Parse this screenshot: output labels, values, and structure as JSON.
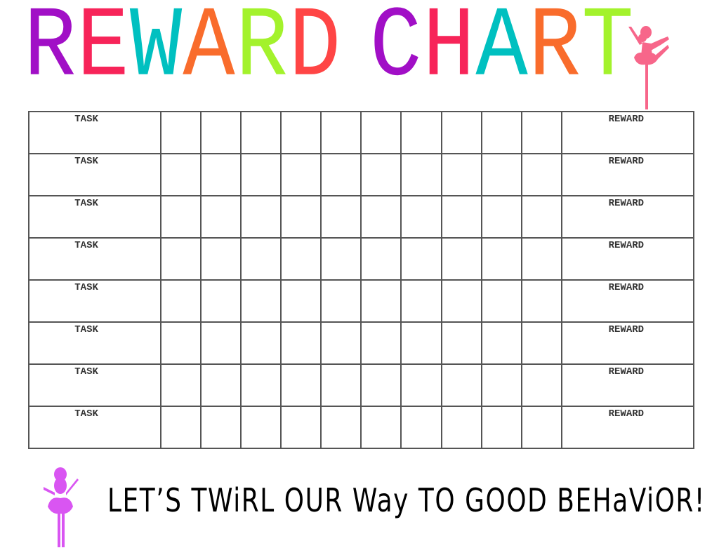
{
  "title": {
    "letters": [
      {
        "char": "R",
        "color": "#a10fc6"
      },
      {
        "char": "E",
        "color": "#f72459"
      },
      {
        "char": "W",
        "color": "#00c0c0"
      },
      {
        "char": "A",
        "color": "#f96c2c"
      },
      {
        "char": "R",
        "color": "#a3f22c"
      },
      {
        "char": "D",
        "color": "#ff4545"
      },
      {
        "char": " ",
        "color": "#000000"
      },
      {
        "char": "C",
        "color": "#a10fc6"
      },
      {
        "char": "H",
        "color": "#f72459"
      },
      {
        "char": "A",
        "color": "#00c0c0"
      },
      {
        "char": "R",
        "color": "#f96c2c"
      },
      {
        "char": "T",
        "color": "#a3f22c"
      }
    ]
  },
  "table": {
    "rows": [
      {
        "task": "TASK",
        "reward": "REWARD"
      },
      {
        "task": "TASK",
        "reward": "REWARD"
      },
      {
        "task": "TASK",
        "reward": "REWARD"
      },
      {
        "task": "TASK",
        "reward": "REWARD"
      },
      {
        "task": "TASK",
        "reward": "REWARD"
      },
      {
        "task": "TASK",
        "reward": "REWARD"
      },
      {
        "task": "TASK",
        "reward": "REWARD"
      },
      {
        "task": "TASK",
        "reward": "REWARD"
      }
    ]
  },
  "slogan": "LET’S TWiRL OUR Way TO GOOD BEHaViOR!",
  "decorations": {
    "top_dancer_color": "#f7668a",
    "bottom_dancer_color": "#d955f2"
  }
}
